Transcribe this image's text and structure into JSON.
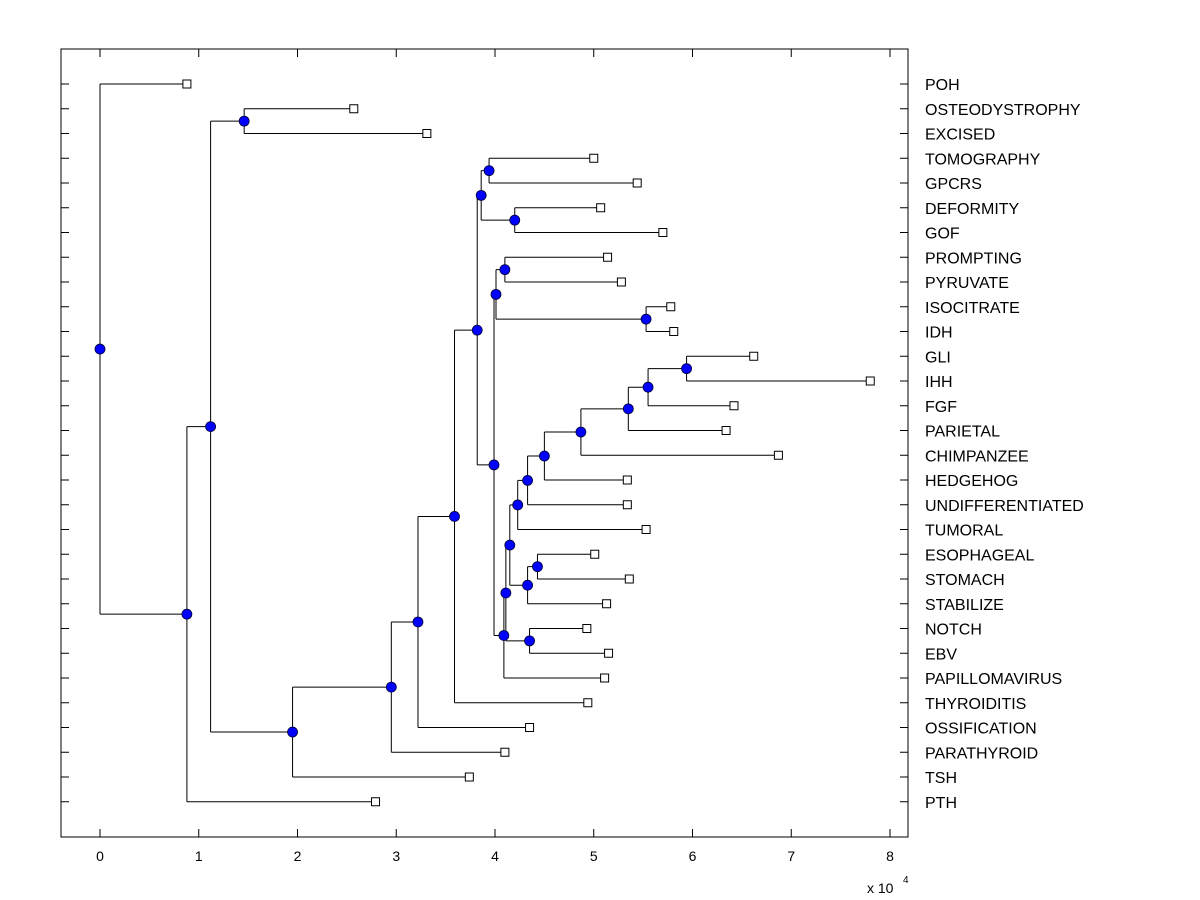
{
  "chart_data": {
    "type": "dendrogram",
    "title": "",
    "xlabel": "",
    "ylabel": "",
    "x_multiplier_label": "x 10",
    "x_multiplier_exponent": "4",
    "xlim": [
      -0.39,
      8.18
    ],
    "xticks": [
      0,
      1,
      2,
      3,
      4,
      5,
      6,
      7,
      8
    ],
    "xtick_labels": [
      "0",
      "1",
      "2",
      "3",
      "4",
      "5",
      "6",
      "7",
      "8"
    ],
    "grid": false,
    "orientation": "horizontal",
    "leaf_order_top_to_bottom": [
      "POH",
      "OSTEODYSTROPHY",
      "EXCISED",
      "TOMOGRAPHY",
      "GPCRS",
      "DEFORMITY",
      "GOF",
      "PROMPTING",
      "PYRUVATE",
      "ISOCITRATE",
      "IDH",
      "GLI",
      "IHH",
      "FGF",
      "PARIETAL",
      "CHIMPANZEE",
      "HEDGEHOG",
      "UNDIFFERENTIATED",
      "TUMORAL",
      "ESOPHAGEAL",
      "STOMACH",
      "STABILIZE",
      "NOTCH",
      "EBV",
      "PAPILLOMAVIRUS",
      "THYROIDITIS",
      "OSSIFICATION",
      "PARATHYROID",
      "TSH",
      "PTH"
    ],
    "leaves": [
      {
        "name": "POH",
        "x": 0.88
      },
      {
        "name": "OSTEODYSTROPHY",
        "x": 2.57
      },
      {
        "name": "EXCISED",
        "x": 3.31
      },
      {
        "name": "TOMOGRAPHY",
        "x": 5.0
      },
      {
        "name": "GPCRS",
        "x": 5.44
      },
      {
        "name": "DEFORMITY",
        "x": 5.07
      },
      {
        "name": "GOF",
        "x": 5.7
      },
      {
        "name": "PROMPTING",
        "x": 5.14
      },
      {
        "name": "PYRUVATE",
        "x": 5.28
      },
      {
        "name": "ISOCITRATE",
        "x": 5.78
      },
      {
        "name": "IDH",
        "x": 5.81
      },
      {
        "name": "GLI",
        "x": 6.62
      },
      {
        "name": "IHH",
        "x": 7.8
      },
      {
        "name": "FGF",
        "x": 6.42
      },
      {
        "name": "PARIETAL",
        "x": 6.34
      },
      {
        "name": "CHIMPANZEE",
        "x": 6.87
      },
      {
        "name": "HEDGEHOG",
        "x": 5.34
      },
      {
        "name": "UNDIFFERENTIATED",
        "x": 5.34
      },
      {
        "name": "TUMORAL",
        "x": 5.53
      },
      {
        "name": "ESOPHAGEAL",
        "x": 5.01
      },
      {
        "name": "STOMACH",
        "x": 5.36
      },
      {
        "name": "STABILIZE",
        "x": 5.13
      },
      {
        "name": "NOTCH",
        "x": 4.93
      },
      {
        "name": "EBV",
        "x": 5.15
      },
      {
        "name": "PAPILLOMAVIRUS",
        "x": 5.11
      },
      {
        "name": "THYROIDITIS",
        "x": 4.94
      },
      {
        "name": "OSSIFICATION",
        "x": 4.35
      },
      {
        "name": "PARATHYROID",
        "x": 4.1
      },
      {
        "name": "TSH",
        "x": 3.74
      },
      {
        "name": "PTH",
        "x": 2.79
      }
    ],
    "internal_nodes": [
      {
        "id": "root",
        "x": 0.0,
        "children": [
          "POH",
          "n_top"
        ]
      },
      {
        "id": "n_top",
        "x": 0.88,
        "children": [
          "n_a",
          "PTH"
        ]
      },
      {
        "id": "n_a",
        "x": 1.12,
        "children": [
          "n_ost",
          "n_b"
        ]
      },
      {
        "id": "n_ost",
        "x": 1.46,
        "children": [
          "OSTEODYSTROPHY",
          "EXCISED"
        ]
      },
      {
        "id": "n_b",
        "x": 1.95,
        "children": [
          "n_c",
          "TSH"
        ]
      },
      {
        "id": "n_c",
        "x": 2.95,
        "children": [
          "n_d",
          "PARATHYROID"
        ]
      },
      {
        "id": "n_d",
        "x": 3.22,
        "children": [
          "n_e",
          "OSSIFICATION"
        ]
      },
      {
        "id": "n_e",
        "x": 3.59,
        "children": [
          "n_f",
          "THYROIDITIS"
        ]
      },
      {
        "id": "n_f",
        "x": 3.82,
        "children": [
          "n_g",
          "n_h"
        ]
      },
      {
        "id": "n_g",
        "x": 3.86,
        "children": [
          "n_tom",
          "n_def"
        ]
      },
      {
        "id": "n_tom",
        "x": 3.94,
        "children": [
          "TOMOGRAPHY",
          "GPCRS"
        ]
      },
      {
        "id": "n_def",
        "x": 4.2,
        "children": [
          "DEFORMITY",
          "GOF"
        ]
      },
      {
        "id": "n_h",
        "x": 3.99,
        "children": [
          "n_i",
          "n_j"
        ]
      },
      {
        "id": "n_i",
        "x": 4.01,
        "children": [
          "n_pro",
          "n_iso"
        ]
      },
      {
        "id": "n_pro",
        "x": 4.1,
        "children": [
          "PROMPTING",
          "PYRUVATE"
        ]
      },
      {
        "id": "n_iso",
        "x": 5.53,
        "children": [
          "ISOCITRATE",
          "IDH"
        ]
      },
      {
        "id": "n_j",
        "x": 4.09,
        "children": [
          "n_k",
          "PAPILLOMAVIRUS"
        ]
      },
      {
        "id": "n_k",
        "x": 4.11,
        "children": [
          "n_l",
          "n_notch"
        ]
      },
      {
        "id": "n_l",
        "x": 4.15,
        "children": [
          "n_m",
          "n_eso2"
        ]
      },
      {
        "id": "n_m",
        "x": 4.23,
        "children": [
          "n_n",
          "TUMORAL"
        ]
      },
      {
        "id": "n_n",
        "x": 4.33,
        "children": [
          "n_o",
          "UNDIFFERENTIATED"
        ]
      },
      {
        "id": "n_o",
        "x": 4.5,
        "children": [
          "n_p",
          "HEDGEHOG"
        ]
      },
      {
        "id": "n_p",
        "x": 4.87,
        "children": [
          "n_q",
          "CHIMPANZEE"
        ]
      },
      {
        "id": "n_q",
        "x": 5.35,
        "children": [
          "n_r",
          "PARIETAL"
        ]
      },
      {
        "id": "n_r",
        "x": 5.55,
        "children": [
          "n_gli",
          "FGF"
        ]
      },
      {
        "id": "n_gli",
        "x": 5.94,
        "children": [
          "GLI",
          "IHH"
        ]
      },
      {
        "id": "n_eso2",
        "x": 4.33,
        "children": [
          "n_eso",
          "STABILIZE"
        ]
      },
      {
        "id": "n_eso",
        "x": 4.43,
        "children": [
          "ESOPHAGEAL",
          "STOMACH"
        ]
      },
      {
        "id": "n_notch",
        "x": 4.35,
        "children": [
          "NOTCH",
          "EBV"
        ]
      }
    ],
    "colors": {
      "internal_node_fill": "#0000ff",
      "leaf_marker_fill": "#ffffff",
      "line": "#000000"
    }
  }
}
